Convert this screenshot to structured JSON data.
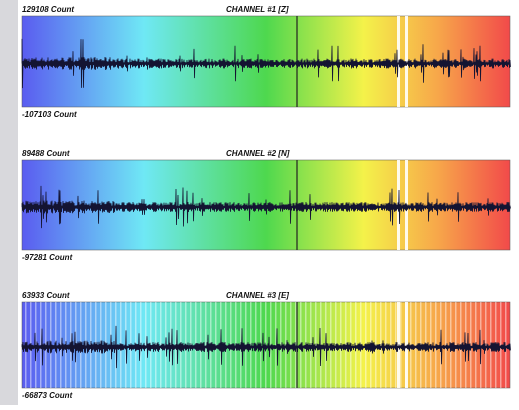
{
  "channels": [
    {
      "max_label": "129108 Count",
      "title": "CHANNEL #1 [Z]",
      "min_label": "-107103 Count"
    },
    {
      "max_label": "89488 Count",
      "title": "CHANNEL #2 [N]",
      "min_label": "-97281 Count"
    },
    {
      "max_label": "63933 Count",
      "title": "CHANNEL #3 [E]",
      "min_label": "-66873 Count"
    }
  ]
}
